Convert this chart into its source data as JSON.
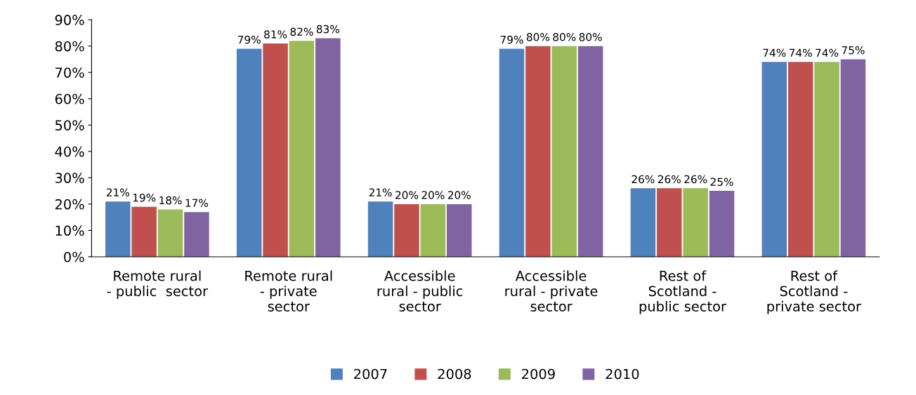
{
  "chart_data": {
    "type": "bar",
    "categories": [
      "Remote rural\n- public  sector",
      "Remote rural\n- private\nsector",
      "Accessible\nrural - public\nsector",
      "Accessible\nrural - private\nsector",
      "Rest of\nScotland -\npublic sector",
      "Rest of\nScotland -\nprivate sector"
    ],
    "series": [
      {
        "name": "2007",
        "color": "#4f81bd",
        "values": [
          21,
          79,
          21,
          79,
          26,
          74
        ],
        "value_labels": [
          "21%",
          "79%",
          "21%",
          "79%",
          "26%",
          "74%"
        ]
      },
      {
        "name": "2008",
        "color": "#c0504d",
        "values": [
          19,
          81,
          20,
          80,
          26,
          74
        ],
        "value_labels": [
          "19%",
          "81%",
          "20%",
          "80%",
          "26%",
          "74%"
        ]
      },
      {
        "name": "2009",
        "color": "#9bbb59",
        "values": [
          18,
          82,
          20,
          80,
          26,
          74
        ],
        "value_labels": [
          "18%",
          "82%",
          "20%",
          "80%",
          "26%",
          "74%"
        ]
      },
      {
        "name": "2010",
        "color": "#8064a2",
        "values": [
          17,
          83,
          20,
          80,
          25,
          75
        ],
        "value_labels": [
          "17%",
          "83%",
          "20%",
          "80%",
          "25%",
          "75%"
        ]
      }
    ],
    "ylim": [
      0,
      90
    ],
    "yticks": [
      {
        "value": 0,
        "label": "0%"
      },
      {
        "value": 10,
        "label": "10%"
      },
      {
        "value": 20,
        "label": "20%"
      },
      {
        "value": 30,
        "label": "30%"
      },
      {
        "value": 40,
        "label": "40%"
      },
      {
        "value": 50,
        "label": "50%"
      },
      {
        "value": 60,
        "label": "60%"
      },
      {
        "value": 70,
        "label": "70%"
      },
      {
        "value": 80,
        "label": "80%"
      },
      {
        "value": 90,
        "label": "90%"
      }
    ],
    "grid": false,
    "legend": "bottom"
  }
}
